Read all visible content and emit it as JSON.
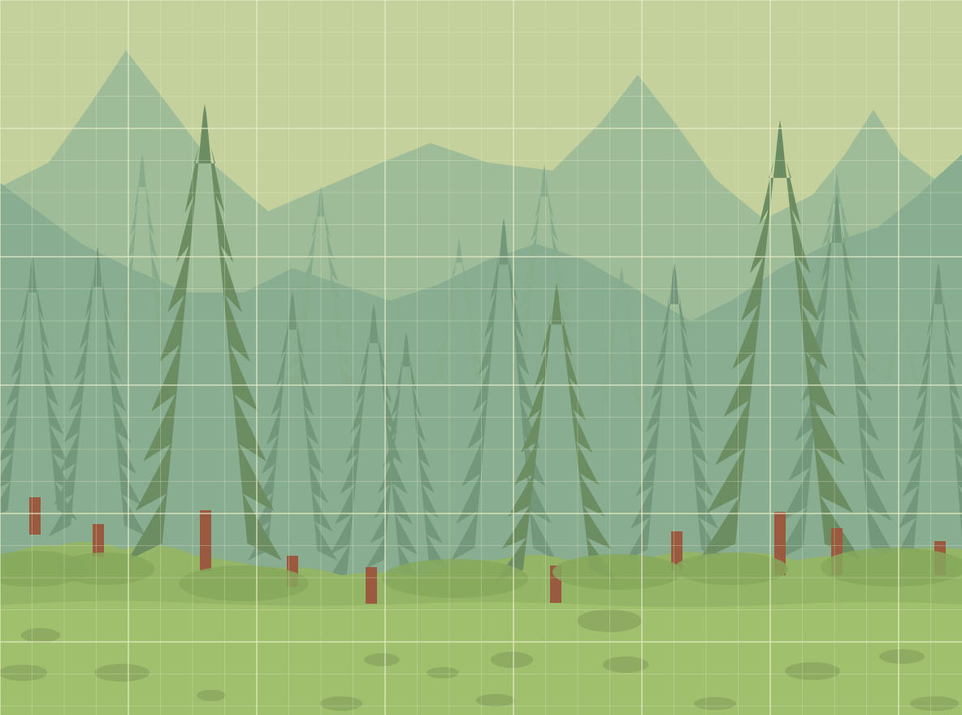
{
  "scene": {
    "kind": "side-scrolling forest background",
    "layers": [
      "sky",
      "far-mountains",
      "mid-mountains",
      "far-trees",
      "near-trees",
      "bushes",
      "ground"
    ],
    "overlay": "tile-grid",
    "colors": {
      "sky": "#c4d19c",
      "sky_low": "#cdd7a0",
      "mountain_far": "#9ebc98",
      "mountain_mid": "#89ad90",
      "tree_far": "#87ab8b",
      "tree_mid": "#73977a",
      "tree_near": "#6c8c62",
      "trunk": "#9a5a3f",
      "bush": "#94b565",
      "bush_dark": "#86a85c",
      "ground": "#a0c06e",
      "ground_spot": "#8aa55e",
      "grid_line": "#e6ecc6"
    }
  }
}
